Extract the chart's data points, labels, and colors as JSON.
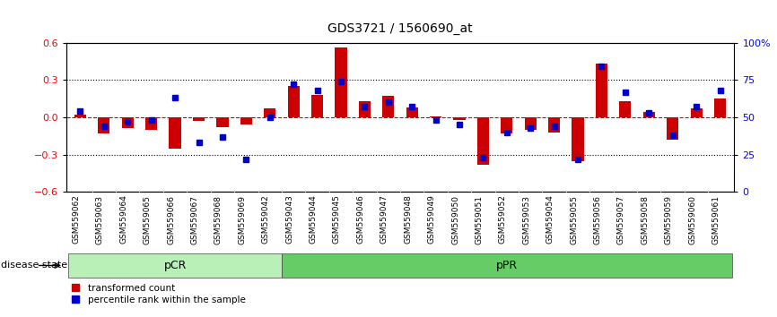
{
  "title": "GDS3721 / 1560690_at",
  "samples": [
    "GSM559062",
    "GSM559063",
    "GSM559064",
    "GSM559065",
    "GSM559066",
    "GSM559067",
    "GSM559068",
    "GSM559069",
    "GSM559042",
    "GSM559043",
    "GSM559044",
    "GSM559045",
    "GSM559046",
    "GSM559047",
    "GSM559048",
    "GSM559049",
    "GSM559050",
    "GSM559051",
    "GSM559052",
    "GSM559053",
    "GSM559054",
    "GSM559055",
    "GSM559056",
    "GSM559057",
    "GSM559058",
    "GSM559059",
    "GSM559060",
    "GSM559061"
  ],
  "red_bars": [
    0.02,
    -0.13,
    -0.09,
    -0.1,
    -0.25,
    -0.03,
    -0.08,
    -0.06,
    0.07,
    0.25,
    0.18,
    0.56,
    0.13,
    0.17,
    0.08,
    0.01,
    -0.02,
    -0.38,
    -0.13,
    -0.1,
    -0.12,
    -0.35,
    0.43,
    0.13,
    0.04,
    -0.18,
    0.07,
    0.15
  ],
  "blue_markers": [
    54,
    44,
    47,
    48,
    63,
    33,
    37,
    22,
    50,
    72,
    68,
    74,
    57,
    60,
    57,
    48,
    45,
    23,
    40,
    43,
    44,
    22,
    84,
    67,
    53,
    38,
    57,
    68
  ],
  "pCR_count": 9,
  "pPR_count": 19,
  "ylim": [
    -0.6,
    0.6
  ],
  "right_ylim": [
    0,
    100
  ],
  "right_yticks": [
    0,
    25,
    50,
    75,
    100
  ],
  "right_yticklabels": [
    "0",
    "25",
    "50",
    "75",
    "100%"
  ],
  "left_yticks": [
    -0.6,
    -0.3,
    0.0,
    0.3,
    0.6
  ],
  "dotted_lines": [
    -0.3,
    0.3
  ],
  "bar_color": "#cc0000",
  "marker_color": "#0000cc",
  "pCR_facecolor": "#b8f0b8",
  "pPR_facecolor": "#66cc66",
  "bg_color": "#ffffff",
  "xtick_area_color": "#cccccc",
  "legend_red": "transformed count",
  "legend_blue": "percentile rank within the sample",
  "disease_state_label": "disease state"
}
